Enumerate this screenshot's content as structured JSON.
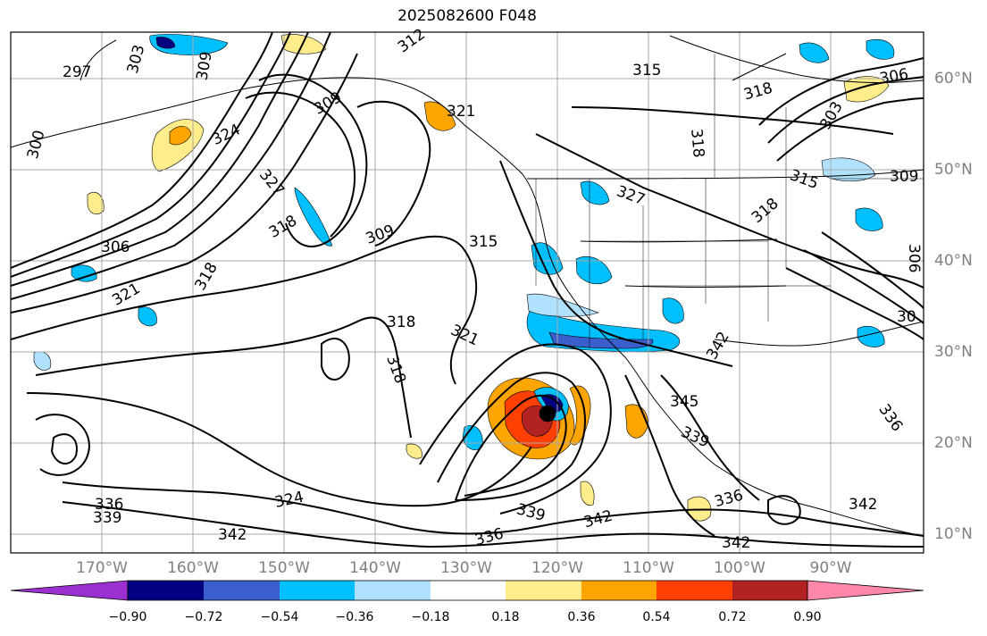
{
  "title": "2025082600 F048",
  "lat_labels": [
    "60°N",
    "50°N",
    "40°N",
    "30°N",
    "20°N",
    "10°N"
  ],
  "lon_labels": [
    "170°W",
    "160°W",
    "150°W",
    "140°W",
    "130°W",
    "120°W",
    "110°W",
    "100°W",
    "90°W"
  ],
  "colorbar": {
    "colors": [
      "#9b30d0",
      "#000080",
      "#3a5fcd",
      "#00bfff",
      "#b0e2ff",
      "#ffffff",
      "#ffec8b",
      "#ffa500",
      "#ff4000",
      "#b22222",
      "#ff88aa"
    ],
    "tick_labels": [
      "−0.90",
      "−0.72",
      "−0.54",
      "−0.36",
      "−0.18",
      "0.18",
      "0.36",
      "0.54",
      "0.72",
      "0.90"
    ]
  },
  "contour_labels": [
    "297",
    "303",
    "309",
    "312",
    "315",
    "318",
    "324",
    "321",
    "300",
    "306",
    "327",
    "309",
    "318",
    "315",
    "318",
    "321",
    "318",
    "321",
    "318",
    "327",
    "318",
    "306",
    "315",
    "309",
    "309",
    "303",
    "306",
    "318",
    "342",
    "345",
    "339",
    "336",
    "336",
    "339",
    "342",
    "336",
    "339",
    "342",
    "324",
    "342",
    "336",
    "342",
    "30"
  ]
}
